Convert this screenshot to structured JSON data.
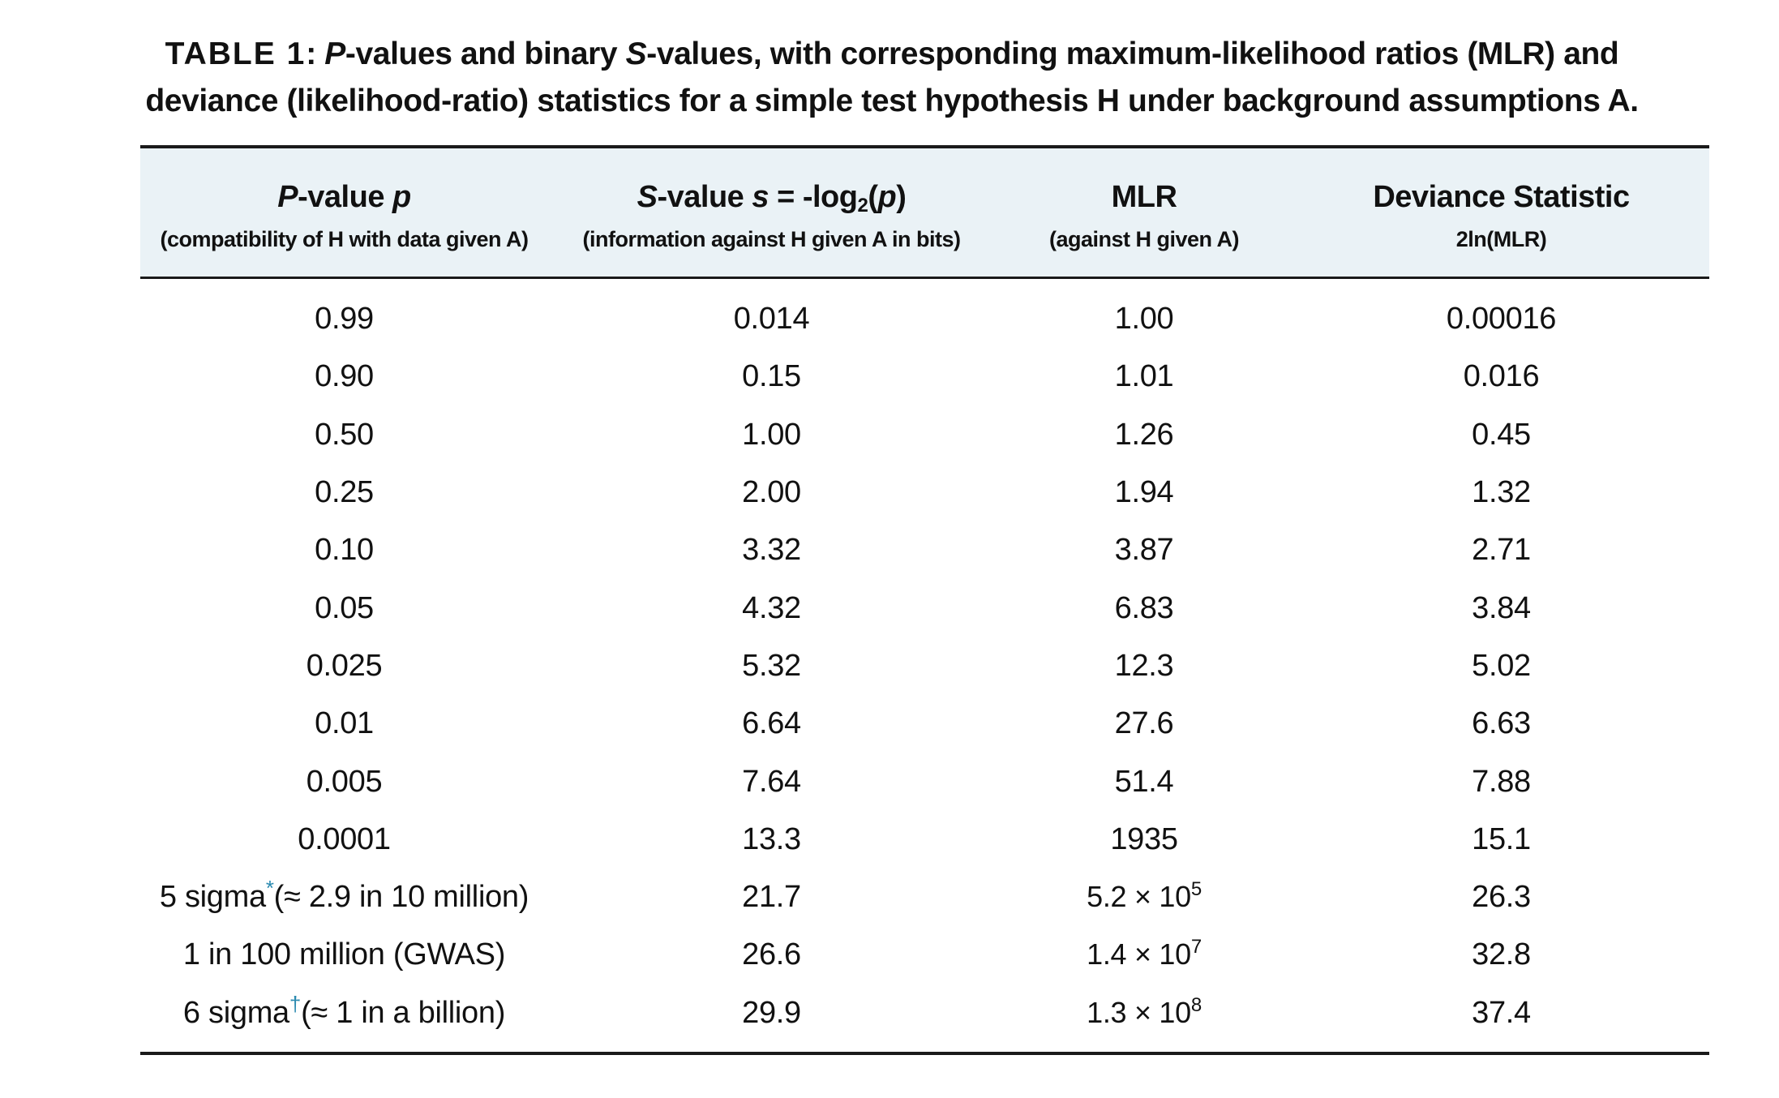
{
  "caption": {
    "label": "TABLE 1",
    "sep": ": ",
    "p_letter": "P",
    "part1": "-values and binary ",
    "s_letter": "S",
    "part2": "-values, with corresponding maximum-likelihood ratios (MLR) and deviance (likelihood-ratio) statistics for a simple test hypothesis H under background assumptions A."
  },
  "columns": [
    {
      "main_a": "P",
      "main_b": "-value ",
      "main_c": "p",
      "sub": "(compatibility of H with data given A)"
    },
    {
      "main_a": "S",
      "main_b": "-value ",
      "main_c": "s",
      "main_d": " = -log",
      "main_sub": "2",
      "main_e": "(",
      "main_f": "p",
      "main_g": ")",
      "sub": "(information against H given A in bits)"
    },
    {
      "main": "MLR",
      "sub": "(against H given A)"
    },
    {
      "main": "Deviance Statistic",
      "sub": "2ln(MLR)"
    }
  ],
  "rows": [
    {
      "p": "0.99",
      "s": "0.014",
      "mlr": "1.00",
      "dev": "0.00016"
    },
    {
      "p": "0.90",
      "s": "0.15",
      "mlr": "1.01",
      "dev": "0.016"
    },
    {
      "p": "0.50",
      "s": "1.00",
      "mlr": "1.26",
      "dev": "0.45"
    },
    {
      "p": "0.25",
      "s": "2.00",
      "mlr": "1.94",
      "dev": "1.32"
    },
    {
      "p": "0.10",
      "s": "3.32",
      "mlr": "3.87",
      "dev": "2.71"
    },
    {
      "p": "0.05",
      "s": "4.32",
      "mlr": "6.83",
      "dev": "3.84"
    },
    {
      "p": "0.025",
      "s": "5.32",
      "mlr": "12.3",
      "dev": "5.02"
    },
    {
      "p": "0.01",
      "s": "6.64",
      "mlr": "27.6",
      "dev": "6.63"
    },
    {
      "p": "0.005",
      "s": "7.64",
      "mlr": "51.4",
      "dev": "7.88"
    },
    {
      "p": "0.0001",
      "s": "13.3",
      "mlr": "1935",
      "dev": "15.1"
    }
  ],
  "special_rows": [
    {
      "p_a": "5 sigma",
      "p_mark": "*",
      "p_b": "(≈ 2.9 in 10 million)",
      "s": "21.7",
      "mlr_base": "5.2 × 10",
      "mlr_exp": "5",
      "dev": "26.3"
    },
    {
      "p_a": "1 in 100 million (GWAS)",
      "p_mark": "",
      "p_b": "",
      "s": "26.6",
      "mlr_base": "1.4 × 10",
      "mlr_exp": "7",
      "dev": "32.8"
    },
    {
      "p_a": "6 sigma",
      "p_mark": "†",
      "p_b": "(≈ 1 in a billion)",
      "s": "29.9",
      "mlr_base": "1.3 × 10",
      "mlr_exp": "8",
      "dev": "37.4"
    }
  ],
  "colors": {
    "header_bg": "#eaf2f6",
    "rule": "#1a1a1a",
    "footnote_mark": "#2a8ab0"
  }
}
